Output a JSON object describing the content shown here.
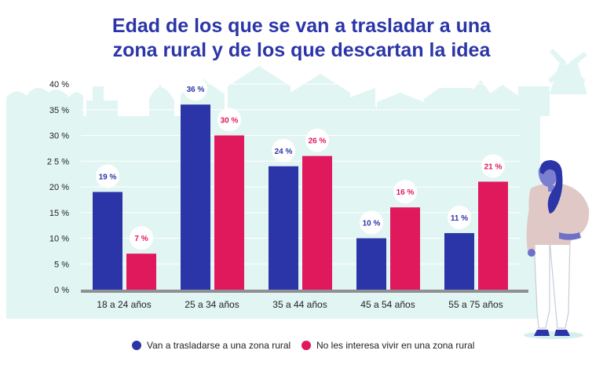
{
  "chart_data": {
    "type": "bar",
    "title_lines": [
      "Edad de los que se van a trasladar a una",
      "zona rural y de los que descartan la idea"
    ],
    "categories": [
      "18 a 24 años",
      "25 a 34 años",
      "35 a 44 años",
      "45 a 54 años",
      "55 a 75 años"
    ],
    "series": [
      {
        "name": "Van a trasladarse a una zona rural",
        "color": "#2b35a8",
        "values": [
          19,
          36,
          24,
          10,
          11
        ],
        "labels": [
          "19 %",
          "36 %",
          "24 %",
          "10 %",
          "11 %"
        ]
      },
      {
        "name": "No les interesa vivir en una zona rural",
        "color": "#e0185c",
        "values": [
          7,
          30,
          26,
          16,
          21
        ],
        "labels": [
          "7 %",
          "30 %",
          "26 %",
          "16 %",
          "21 %"
        ]
      }
    ],
    "yticks": [
      0,
      5,
      10,
      15,
      20,
      25,
      30,
      35,
      40
    ],
    "ytick_labels": [
      "0 %",
      "5 %",
      "10 %",
      "15 %",
      "20 %",
      "2 5 %",
      "30 %",
      "35 %",
      "40 %"
    ],
    "ylim": [
      0,
      40
    ],
    "legend_position": "bottom"
  }
}
